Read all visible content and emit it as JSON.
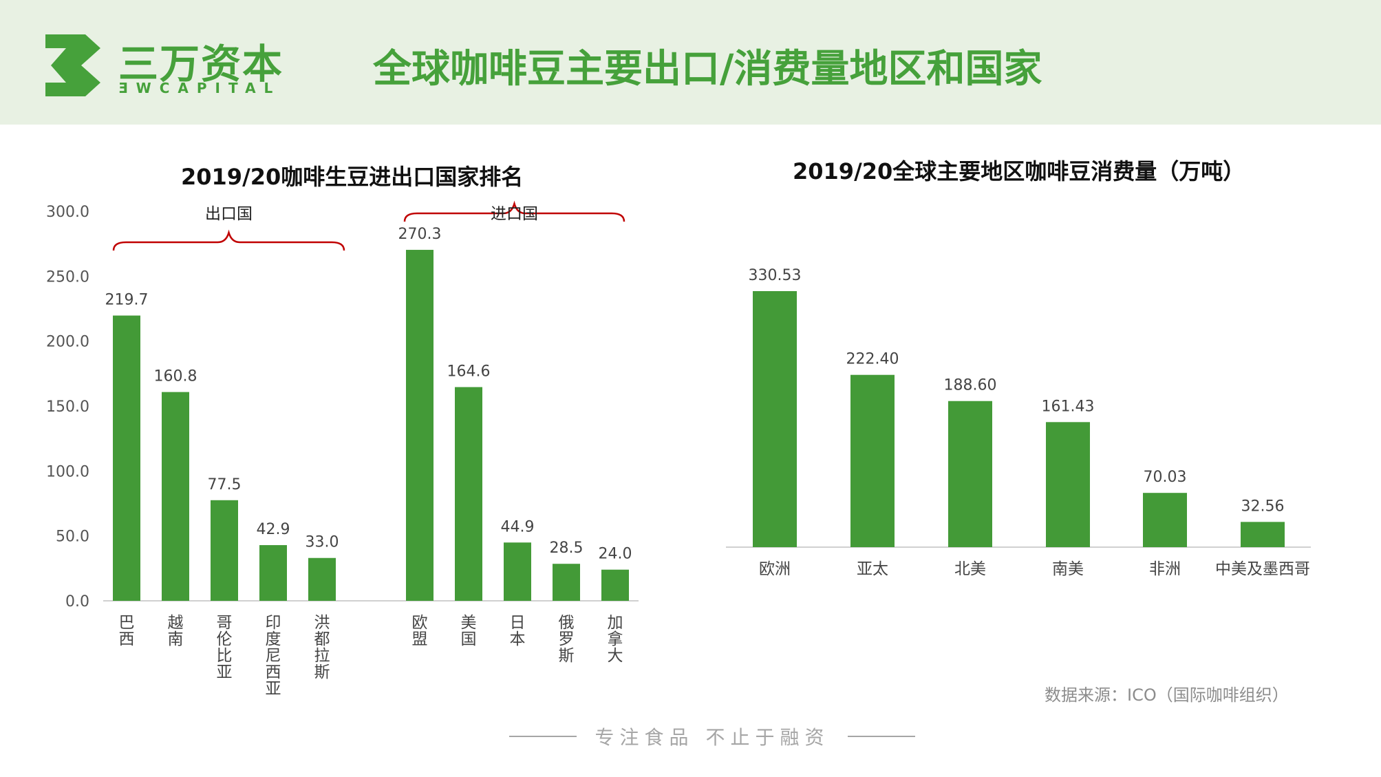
{
  "brand": {
    "name_cn": "三万资本",
    "name_en": "ƎWCAPITAL",
    "accent_color": "#46a13b"
  },
  "page_title": "全球咖啡豆主要出口/消费量地区和国家",
  "chart_data": [
    {
      "type": "bar",
      "title": "2019/20咖啡生豆进出口国家排名",
      "ylim": [
        0,
        300
      ],
      "yticks": [
        "0.0",
        "50.0",
        "100.0",
        "150.0",
        "200.0",
        "250.0",
        "300.0"
      ],
      "grid": false,
      "bar_color": "#439a37",
      "groups": [
        {
          "label": "出口国",
          "categories": [
            "巴西",
            "越南",
            "哥伦比亚",
            "印度尼西亚",
            "洪都拉斯"
          ],
          "values": [
            219.7,
            160.8,
            77.5,
            42.9,
            33.0
          ],
          "value_labels": [
            "219.7",
            "160.8",
            "77.5",
            "42.9",
            "33.0"
          ]
        },
        {
          "label": "进口国",
          "categories": [
            "欧盟",
            "美国",
            "日本",
            "俄罗斯",
            "加拿大"
          ],
          "values": [
            270.3,
            164.6,
            44.9,
            28.5,
            24.0
          ],
          "value_labels": [
            "270.3",
            "164.6",
            "44.9",
            "28.5",
            "24.0"
          ]
        }
      ]
    },
    {
      "type": "bar",
      "title": "2019/20全球主要地区咖啡豆消费量（万吨）",
      "categories": [
        "欧洲",
        "亚太",
        "北美",
        "南美",
        "非洲",
        "中美及墨西哥"
      ],
      "values": [
        330.53,
        222.4,
        188.6,
        161.43,
        70.03,
        32.56
      ],
      "value_labels": [
        "330.53",
        "222.40",
        "188.60",
        "161.43",
        "70.03",
        "32.56"
      ],
      "grid": false,
      "bar_color": "#439a37"
    }
  ],
  "source_note": "数据来源：ICO（国际咖啡组织）",
  "footer_slogan": "专注食品 不止于融资"
}
